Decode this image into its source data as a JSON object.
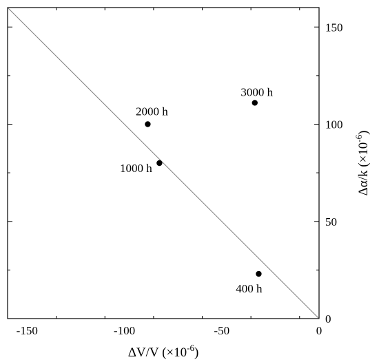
{
  "chart_data": {
    "type": "scatter",
    "x_axis": {
      "label": "ΔV/V (×10",
      "label_exp": "-6",
      "label_close": ")",
      "range": [
        -160,
        0
      ],
      "ticks": [
        -150,
        -100,
        -50,
        0
      ],
      "tick_labels": [
        "-150",
        "-100",
        "-50",
        "0"
      ]
    },
    "y_axis": {
      "label": "Δα/k (×10",
      "label_exp": "-6",
      "label_close": ")",
      "range": [
        0,
        160
      ],
      "position": "right",
      "ticks": [
        0,
        50,
        100,
        150
      ],
      "tick_labels": [
        "0",
        "50",
        "100",
        "150"
      ]
    },
    "reference_line": {
      "from": [
        -160,
        160
      ],
      "to": [
        0,
        0
      ],
      "color": "#808080"
    },
    "points": [
      {
        "label": "400 h",
        "x": -31,
        "y": 23
      },
      {
        "label": "1000 h",
        "x": -82,
        "y": 80
      },
      {
        "label": "2000 h",
        "x": -88,
        "y": 100
      },
      {
        "label": "3000 h",
        "x": -33,
        "y": 111
      }
    ],
    "grid": false,
    "legend": "none",
    "marker_color": "#000000"
  }
}
